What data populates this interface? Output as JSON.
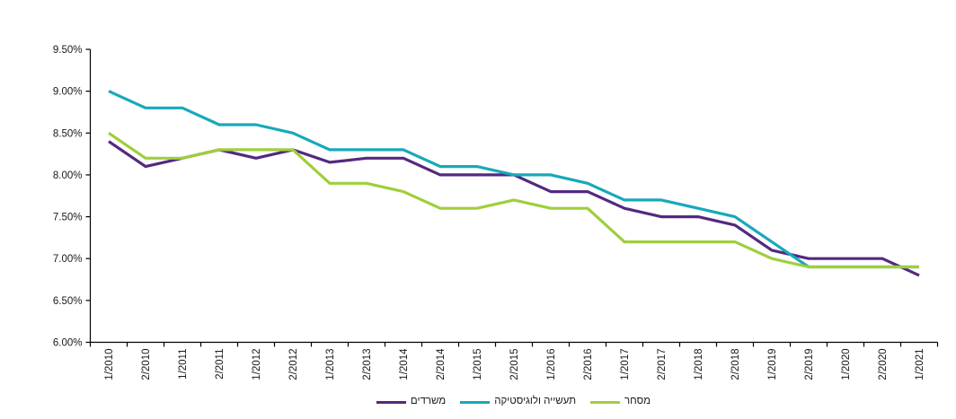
{
  "chart_data": {
    "type": "line",
    "title": "",
    "xlabel": "",
    "ylabel": "",
    "grid": false,
    "legend_position": "bottom-center",
    "ylim": [
      6.0,
      9.5
    ],
    "y_ticks": [
      {
        "value": 9.5,
        "label": "9.50%"
      },
      {
        "value": 9.0,
        "label": "9.00%"
      },
      {
        "value": 8.5,
        "label": "8.50%"
      },
      {
        "value": 8.0,
        "label": "8.00%"
      },
      {
        "value": 7.5,
        "label": "7.50%"
      },
      {
        "value": 7.0,
        "label": "7.00%"
      },
      {
        "value": 6.5,
        "label": "6.50%"
      },
      {
        "value": 6.0,
        "label": "6.00%"
      }
    ],
    "categories": [
      "1/2010",
      "2/2010",
      "1/2011",
      "2/2011",
      "1/2012",
      "2/2012",
      "1/2013",
      "2/2013",
      "1/2014",
      "2/2014",
      "1/2015",
      "2/2015",
      "1/2016",
      "2/2016",
      "1/2017",
      "2/2017",
      "1/2018",
      "2/2018",
      "1/2019",
      "2/2019",
      "1/2020",
      "2/2020",
      "1/2021"
    ],
    "series": [
      {
        "name": "משרדים",
        "color": "#53297f",
        "values": [
          8.4,
          8.1,
          8.2,
          8.3,
          8.2,
          8.3,
          8.15,
          8.2,
          8.2,
          8.0,
          8.0,
          8.0,
          7.8,
          7.8,
          7.6,
          7.5,
          7.5,
          7.4,
          7.1,
          7.0,
          7.0,
          7.0,
          6.8
        ]
      },
      {
        "name": "תעשייה ולוגיסטיקה",
        "color": "#17a9ba",
        "values": [
          9.0,
          8.8,
          8.8,
          8.6,
          8.6,
          8.5,
          8.3,
          8.3,
          8.3,
          8.1,
          8.1,
          8.0,
          8.0,
          7.9,
          7.7,
          7.7,
          7.6,
          7.5,
          7.2,
          6.9,
          6.9,
          6.9,
          6.9
        ]
      },
      {
        "name": "מסחר",
        "color": "#a0ce3c",
        "values": [
          8.5,
          8.2,
          8.2,
          8.3,
          8.3,
          8.3,
          7.9,
          7.9,
          7.8,
          7.6,
          7.6,
          7.7,
          7.6,
          7.6,
          7.2,
          7.2,
          7.2,
          7.2,
          7.0,
          6.9,
          6.9,
          6.9,
          6.9
        ]
      }
    ]
  }
}
